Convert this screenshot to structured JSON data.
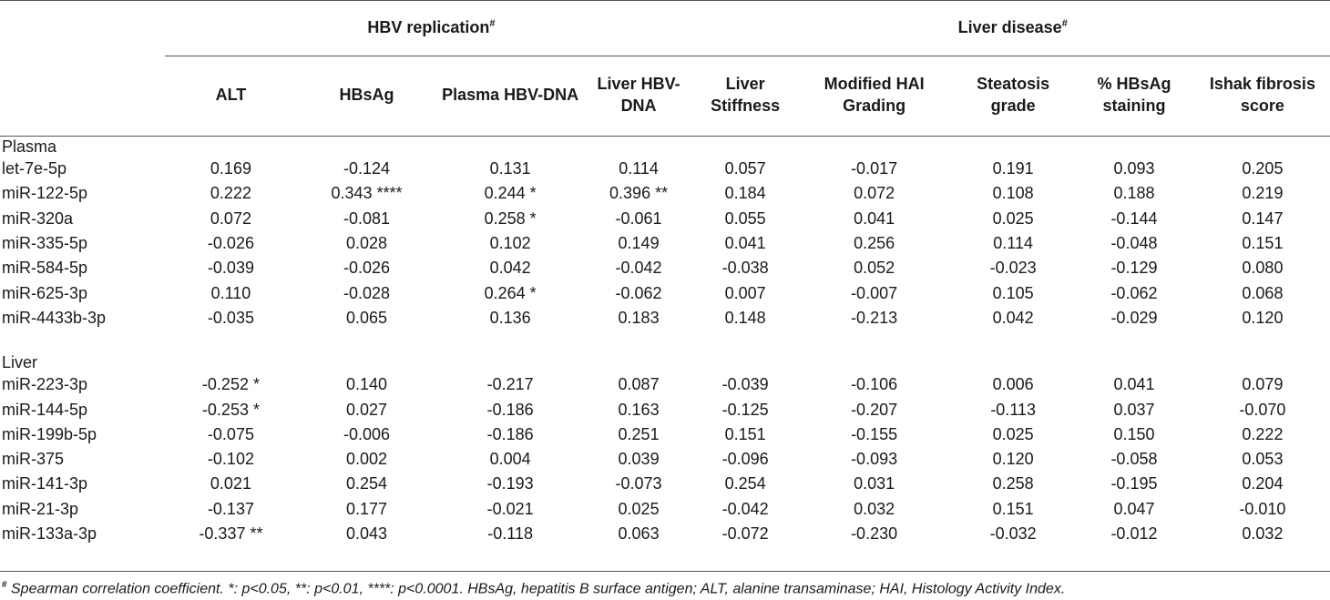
{
  "groups": {
    "hbv": "HBV replication",
    "liver": "Liver disease",
    "mark": "#"
  },
  "columns": [
    "ALT",
    "HBsAg",
    "Plasma HBV-DNA",
    "Liver HBV-DNA",
    "Liver Stiffness",
    "Modified HAI Grading",
    "Steatosis grade",
    "% HBsAg staining",
    "Ishak fibrosis score"
  ],
  "sections": [
    {
      "title": "Plasma",
      "rows": [
        {
          "name": "let-7e-5p",
          "values": [
            "0.169",
            "-0.124",
            "0.131",
            "0.114",
            "0.057",
            "-0.017",
            "0.191",
            "0.093",
            "0.205"
          ]
        },
        {
          "name": "miR-122-5p",
          "values": [
            "0.222",
            "0.343 ****",
            "0.244 *",
            "0.396 **",
            "0.184",
            "0.072",
            "0.108",
            "0.188",
            "0.219"
          ]
        },
        {
          "name": "miR-320a",
          "values": [
            "0.072",
            "-0.081",
            "0.258 *",
            "-0.061",
            "0.055",
            "0.041",
            "0.025",
            "-0.144",
            "0.147"
          ]
        },
        {
          "name": "miR-335-5p",
          "values": [
            "-0.026",
            "0.028",
            "0.102",
            "0.149",
            "0.041",
            "0.256",
            "0.114",
            "-0.048",
            "0.151"
          ]
        },
        {
          "name": "miR-584-5p",
          "values": [
            "-0.039",
            "-0.026",
            "0.042",
            "-0.042",
            "-0.038",
            "0.052",
            "-0.023",
            "-0.129",
            "0.080"
          ]
        },
        {
          "name": "miR-625-3p",
          "values": [
            "0.110",
            "-0.028",
            "0.264 *",
            "-0.062",
            "0.007",
            "-0.007",
            "0.105",
            "-0.062",
            "0.068"
          ]
        },
        {
          "name": "miR-4433b-3p",
          "values": [
            "-0.035",
            "0.065",
            "0.136",
            "0.183",
            "0.148",
            "-0.213",
            "0.042",
            "-0.029",
            "0.120"
          ]
        }
      ]
    },
    {
      "title": "Liver",
      "rows": [
        {
          "name": "miR-223-3p",
          "values": [
            "-0.252 *",
            "0.140",
            "-0.217",
            "0.087",
            "-0.039",
            "-0.106",
            "0.006",
            "0.041",
            "0.079"
          ]
        },
        {
          "name": "miR-144-5p",
          "values": [
            "-0.253 *",
            "0.027",
            "-0.186",
            "0.163",
            "-0.125",
            "-0.207",
            "-0.113",
            "0.037",
            "-0.070"
          ]
        },
        {
          "name": "miR-199b-5p",
          "values": [
            "-0.075",
            "-0.006",
            "-0.186",
            "0.251",
            "0.151",
            "-0.155",
            "0.025",
            "0.150",
            "0.222"
          ]
        },
        {
          "name": "miR-375",
          "values": [
            "-0.102",
            "0.002",
            "0.004",
            "0.039",
            "-0.096",
            "-0.093",
            "0.120",
            "-0.058",
            "0.053"
          ]
        },
        {
          "name": "miR-141-3p",
          "values": [
            "0.021",
            "0.254",
            "-0.193",
            "-0.073",
            "0.254",
            "0.031",
            "0.258",
            "-0.195",
            "0.204"
          ]
        },
        {
          "name": "miR-21-3p",
          "values": [
            "-0.137",
            "0.177",
            "-0.021",
            "0.025",
            "-0.042",
            "0.032",
            "0.151",
            "0.047",
            "-0.010"
          ]
        },
        {
          "name": "miR-133a-3p",
          "values": [
            "-0.337 **",
            "0.043",
            "-0.118",
            "0.063",
            "-0.072",
            "-0.230",
            "-0.032",
            "-0.012",
            "0.032"
          ]
        }
      ]
    }
  ],
  "footnote": {
    "mark": "#",
    "text": " Spearman correlation coefficient. *: p<0.05, **: p<0.01, ****: p<0.0001. HBsAg, hepatitis B surface antigen; ALT, alanine transaminase; HAI, Histology Activity Index."
  }
}
